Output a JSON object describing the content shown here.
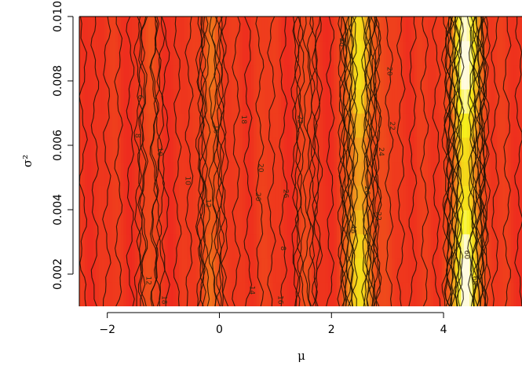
{
  "chart_data": {
    "type": "heatmap",
    "title": "",
    "xlabel": "μ",
    "ylabel": "σ²",
    "xlim": [
      -2.5,
      5.4
    ],
    "ylim": [
      0.001,
      0.01
    ],
    "x_ticks": [
      {
        "value": -2,
        "label": "−2"
      },
      {
        "value": 0,
        "label": "0"
      },
      {
        "value": 2,
        "label": "2"
      },
      {
        "value": 4,
        "label": "4"
      }
    ],
    "y_ticks": [
      {
        "value": 0.002,
        "label": "0.002"
      },
      {
        "value": 0.004,
        "label": "0.004"
      },
      {
        "value": 0.006,
        "label": "0.006"
      },
      {
        "value": 0.008,
        "label": "0.008"
      },
      {
        "value": 0.01,
        "label": "0.010"
      }
    ],
    "grid": false,
    "colors": {
      "low": "#ee2a1e",
      "mid": "#f08a20",
      "high": "#f6f01a",
      "peak": "#fffbe0",
      "contour": "#1a1205"
    },
    "ridges": [
      {
        "mu": -1.25,
        "width": 0.14,
        "height": 8
      },
      {
        "mu": -0.15,
        "width": 0.14,
        "height": 22
      },
      {
        "mu": 1.55,
        "width": 0.12,
        "height": 6
      },
      {
        "mu": 2.5,
        "width": 0.22,
        "height": 48
      },
      {
        "mu": 4.4,
        "width": 0.25,
        "height": 68
      }
    ],
    "contour_labels": [
      {
        "mu": -1.45,
        "sigma2": 0.0075,
        "label": "6"
      },
      {
        "mu": -1.5,
        "sigma2": 0.0063,
        "label": "8"
      },
      {
        "mu": -1.1,
        "sigma2": 0.0058,
        "label": "10"
      },
      {
        "mu": -1.3,
        "sigma2": 0.0018,
        "label": "12"
      },
      {
        "mu": -1.02,
        "sigma2": 0.0012,
        "label": "18"
      },
      {
        "mu": -0.6,
        "sigma2": 0.0049,
        "label": "10"
      },
      {
        "mu": -0.24,
        "sigma2": 0.0042,
        "label": "12"
      },
      {
        "mu": -0.1,
        "sigma2": 0.0065,
        "label": "16"
      },
      {
        "mu": 0.4,
        "sigma2": 0.0068,
        "label": "18"
      },
      {
        "mu": 0.7,
        "sigma2": 0.0053,
        "label": "20"
      },
      {
        "mu": 0.65,
        "sigma2": 0.0044,
        "label": "20"
      },
      {
        "mu": 0.55,
        "sigma2": 0.0015,
        "label": "14"
      },
      {
        "mu": 1.1,
        "sigma2": 0.0028,
        "label": "8"
      },
      {
        "mu": 1.15,
        "sigma2": 0.0045,
        "label": "26"
      },
      {
        "mu": 1.4,
        "sigma2": 0.0068,
        "label": "22"
      },
      {
        "mu": 1.05,
        "sigma2": 0.0012,
        "label": "16"
      },
      {
        "mu": 2.15,
        "sigma2": 0.0092,
        "label": "26"
      },
      {
        "mu": 2.35,
        "sigma2": 0.0034,
        "label": "48"
      },
      {
        "mu": 2.6,
        "sigma2": 0.0046,
        "label": "26"
      },
      {
        "mu": 2.85,
        "sigma2": 0.0058,
        "label": "24"
      },
      {
        "mu": 2.8,
        "sigma2": 0.0038,
        "label": "22"
      },
      {
        "mu": 3.0,
        "sigma2": 0.0083,
        "label": "20"
      },
      {
        "mu": 3.05,
        "sigma2": 0.0066,
        "label": "22"
      },
      {
        "mu": 4.38,
        "sigma2": 0.0026,
        "label": "60"
      },
      {
        "mu": 4.52,
        "sigma2": 0.0018,
        "label": "68"
      }
    ]
  }
}
